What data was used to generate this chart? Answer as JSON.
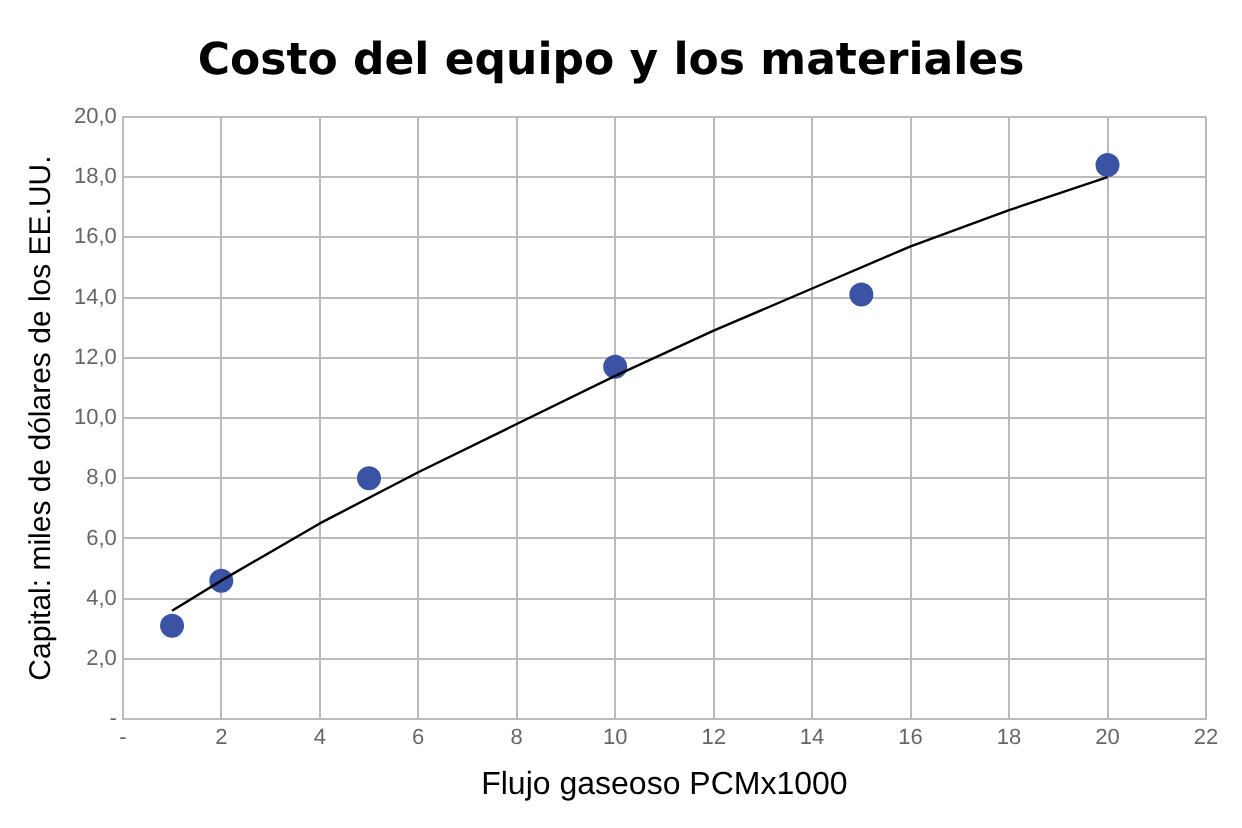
{
  "chart_data": {
    "type": "scatter",
    "title": "Costo del equipo y los materiales",
    "xlabel": "Flujo gaseoso PCMx1000",
    "ylabel": "Capital: miles de dólares de los EE.UU.",
    "series": [
      {
        "type": "scatter",
        "color": "#3a53a4",
        "x": [
          1,
          2,
          5,
          10,
          15,
          20
        ],
        "values": [
          3.1,
          4.6,
          8.0,
          11.7,
          14.1,
          18.4
        ],
        "marker": "circle"
      },
      {
        "type": "line",
        "color": "#000000",
        "x": [
          1,
          2,
          4,
          6,
          8,
          10,
          12,
          14,
          16,
          18,
          20
        ],
        "values": [
          3.6,
          4.6,
          6.5,
          8.2,
          9.8,
          11.4,
          12.9,
          14.3,
          15.7,
          16.9,
          18.0
        ],
        "marker": "none"
      }
    ],
    "xlim": [
      0,
      22
    ],
    "xticks": [
      {
        "value": 0,
        "label": "-"
      },
      2,
      4,
      6,
      8,
      10,
      12,
      14,
      16,
      18,
      20,
      22
    ],
    "ylim": [
      0,
      20
    ],
    "yticks": [
      {
        "value": 0,
        "label": "-"
      },
      {
        "value": 2,
        "label": "2,0"
      },
      {
        "value": 4,
        "label": "4,0"
      },
      {
        "value": 6,
        "label": "6,0"
      },
      {
        "value": 8,
        "label": "8,0"
      },
      {
        "value": 10,
        "label": "10,0"
      },
      {
        "value": 12,
        "label": "12,0"
      },
      {
        "value": 14,
        "label": "14,0"
      },
      {
        "value": 16,
        "label": "16,0"
      },
      {
        "value": 18,
        "label": "18,0"
      },
      {
        "value": 20,
        "label": "20,0"
      }
    ],
    "grid": true,
    "legend": false
  }
}
